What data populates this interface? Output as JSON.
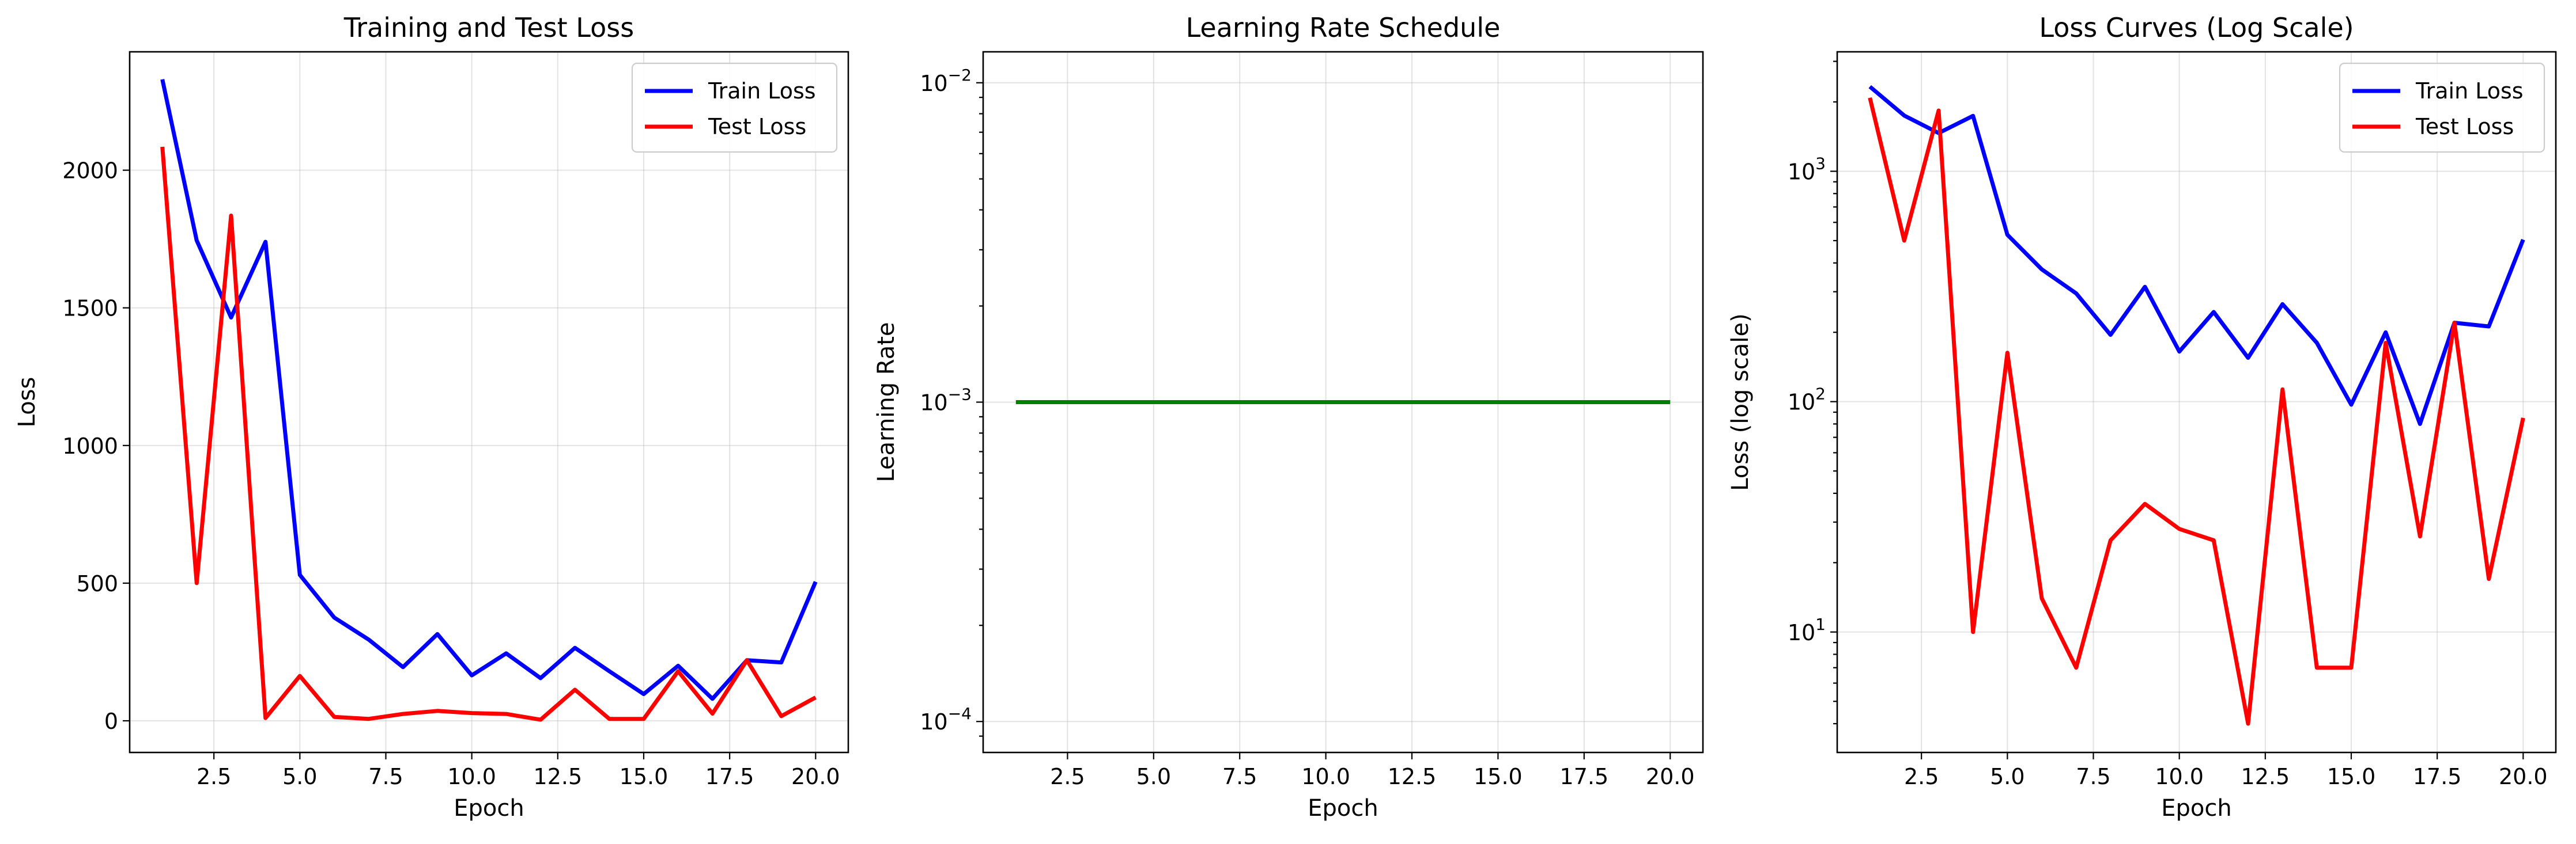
{
  "chart_data": [
    {
      "type": "line",
      "title": "Training and Test Loss",
      "xlabel": "Epoch",
      "ylabel": "Loss",
      "yscale": "linear",
      "xlim": [
        0.05,
        20.95
      ],
      "ylim": [
        -115,
        2430
      ],
      "xticks": [
        2.5,
        5.0,
        7.5,
        10.0,
        12.5,
        15.0,
        17.5,
        20.0
      ],
      "xtick_labels": [
        "2.5",
        "5.0",
        "7.5",
        "10.0",
        "12.5",
        "15.0",
        "17.5",
        "20.0"
      ],
      "yticks": [
        0,
        500,
        1000,
        1500,
        2000
      ],
      "ytick_labels": [
        "0",
        "500",
        "1000",
        "1500",
        "2000"
      ],
      "grid": true,
      "legend": "upper right",
      "x": [
        1,
        2,
        3,
        4,
        5,
        6,
        7,
        8,
        9,
        10,
        11,
        12,
        13,
        14,
        15,
        16,
        17,
        18,
        19,
        20
      ],
      "series": [
        {
          "name": "Train Loss",
          "color": "#0000ff",
          "values": [
            2330,
            1745,
            1465,
            1740,
            530,
            375,
            295,
            195,
            315,
            165,
            245,
            155,
            265,
            180,
            97,
            200,
            80,
            220,
            212,
            505
          ]
        },
        {
          "name": "Test Loss",
          "color": "#ff0000",
          "values": [
            2085,
            500,
            1835,
            10,
            163,
            14,
            7,
            25,
            36,
            28,
            25,
            4,
            113,
            7,
            7,
            180,
            26,
            220,
            17,
            85
          ]
        }
      ]
    },
    {
      "type": "line",
      "title": "Learning Rate Schedule",
      "xlabel": "Epoch",
      "ylabel": "Learning Rate",
      "yscale": "log",
      "xlim": [
        0.05,
        20.95
      ],
      "ylim": [
        8e-05,
        0.0125
      ],
      "xticks": [
        2.5,
        5.0,
        7.5,
        10.0,
        12.5,
        15.0,
        17.5,
        20.0
      ],
      "xtick_labels": [
        "2.5",
        "5.0",
        "7.5",
        "10.0",
        "12.5",
        "15.0",
        "17.5",
        "20.0"
      ],
      "yticks": [
        0.0001,
        0.001,
        0.01
      ],
      "ytick_labels": [
        [
          "10",
          "−4"
        ],
        [
          "10",
          "−3"
        ],
        [
          "10",
          "−2"
        ]
      ],
      "grid": true,
      "x": [
        1,
        2,
        3,
        4,
        5,
        6,
        7,
        8,
        9,
        10,
        11,
        12,
        13,
        14,
        15,
        16,
        17,
        18,
        19,
        20
      ],
      "series": [
        {
          "color": "#008000",
          "values": [
            0.001,
            0.001,
            0.001,
            0.001,
            0.001,
            0.001,
            0.001,
            0.001,
            0.001,
            0.001,
            0.001,
            0.001,
            0.001,
            0.001,
            0.001,
            0.001,
            0.001,
            0.001,
            0.001,
            0.001
          ]
        }
      ]
    },
    {
      "type": "line",
      "title": "Loss Curves (Log Scale)",
      "xlabel": "Epoch",
      "ylabel": "Loss (log scale)",
      "yscale": "log",
      "xlim": [
        0.05,
        20.95
      ],
      "ylim": [
        3.0,
        3300
      ],
      "xticks": [
        2.5,
        5.0,
        7.5,
        10.0,
        12.5,
        15.0,
        17.5,
        20.0
      ],
      "xtick_labels": [
        "2.5",
        "5.0",
        "7.5",
        "10.0",
        "12.5",
        "15.0",
        "17.5",
        "20.0"
      ],
      "yticks": [
        10,
        100,
        1000
      ],
      "ytick_labels": [
        [
          "10",
          "1"
        ],
        [
          "10",
          "2"
        ],
        [
          "10",
          "3"
        ]
      ],
      "grid": true,
      "legend": "upper right",
      "x": [
        1,
        2,
        3,
        4,
        5,
        6,
        7,
        8,
        9,
        10,
        11,
        12,
        13,
        14,
        15,
        16,
        17,
        18,
        19,
        20
      ],
      "series": [
        {
          "name": "Train Loss",
          "color": "#0000ff",
          "values": [
            2330,
            1745,
            1465,
            1740,
            530,
            375,
            295,
            195,
            315,
            165,
            245,
            155,
            265,
            180,
            97,
            200,
            80,
            220,
            212,
            505
          ]
        },
        {
          "name": "Test Loss",
          "color": "#ff0000",
          "values": [
            2085,
            500,
            1835,
            10,
            163,
            14,
            7,
            25,
            36,
            28,
            25,
            4,
            113,
            7,
            7,
            180,
            26,
            220,
            17,
            85
          ]
        }
      ]
    }
  ]
}
